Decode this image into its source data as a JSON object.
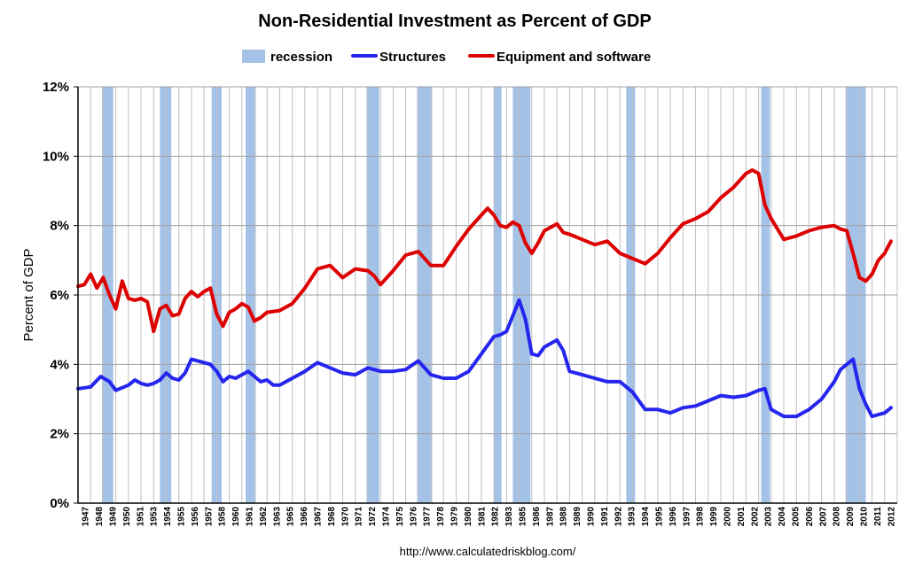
{
  "chart_data": {
    "type": "line",
    "title": "Non-Residential Investment as Percent of GDP",
    "xlabel": "",
    "ylabel": "Percent of GDP",
    "source": "http://www.calculatedriskblog.com/",
    "xlim": [
      1947,
      2012
    ],
    "ylim": [
      0,
      12
    ],
    "y_ticks": [
      0,
      2,
      4,
      6,
      8,
      10,
      12
    ],
    "y_tick_labels": [
      "0%",
      "2%",
      "4%",
      "6%",
      "8%",
      "10%",
      "12%"
    ],
    "x_tick_labels": [
      "1947",
      "1948",
      "1949",
      "1950",
      "1951",
      "1953",
      "1954",
      "1955",
      "1956",
      "1957",
      "1958",
      "1960",
      "1961",
      "1962",
      "1963",
      "1965",
      "1966",
      "1967",
      "1968",
      "1970",
      "1971",
      "1972",
      "1974",
      "1975",
      "1976",
      "1977",
      "1978",
      "1979",
      "1980",
      "1981",
      "1982",
      "1983",
      "1985",
      "1986",
      "1987",
      "1988",
      "1989",
      "1990",
      "1991",
      "1992",
      "1993",
      "1994",
      "1995",
      "1996",
      "1997",
      "1998",
      "1999",
      "2000",
      "2001",
      "2002",
      "2003",
      "2004",
      "2005",
      "2006",
      "2007",
      "2008",
      "2009",
      "2010",
      "2011",
      "2012"
    ],
    "grid": true,
    "legend_position": "top",
    "legend": [
      {
        "label": "recession",
        "color": "#a4c2e8",
        "kind": "bar"
      },
      {
        "label": "Structures",
        "color": "#2525ee",
        "kind": "line"
      },
      {
        "label": "Equipment and software",
        "color": "#dd0000",
        "kind": "line"
      }
    ],
    "recessions": [
      [
        1948.9,
        1949.8
      ],
      [
        1953.5,
        1954.4
      ],
      [
        1957.6,
        1958.4
      ],
      [
        1960.3,
        1961.1
      ],
      [
        1969.9,
        1970.9
      ],
      [
        1973.9,
        1975.1
      ],
      [
        1980.0,
        1980.6
      ],
      [
        1981.5,
        1982.9
      ],
      [
        1990.5,
        1991.2
      ],
      [
        2001.2,
        2001.9
      ],
      [
        2007.9,
        2009.5
      ]
    ],
    "series": [
      {
        "name": "Structures",
        "color": "#2525ee",
        "x": [
          1947,
          1948,
          1948.8,
          1949.5,
          1950,
          1951,
          1951.5,
          1952,
          1952.5,
          1953,
          1953.5,
          1954,
          1954.5,
          1955,
          1955.5,
          1956,
          1956.5,
          1957,
          1957.5,
          1958,
          1958.5,
          1959,
          1959.5,
          1960,
          1960.5,
          1961,
          1961.5,
          1962,
          1962.5,
          1963,
          1964,
          1965,
          1966,
          1967,
          1968,
          1969,
          1970,
          1971,
          1972,
          1973,
          1974,
          1975,
          1976,
          1977,
          1978,
          1979,
          1980,
          1980.5,
          1981,
          1981.5,
          1982,
          1982.5,
          1983,
          1983.5,
          1984,
          1985,
          1985.5,
          1986,
          1987,
          1988,
          1989,
          1990,
          1991,
          1992,
          1993,
          1994,
          1995,
          1996,
          1997,
          1998,
          1999,
          2000,
          2001,
          2001.5,
          2002,
          2003,
          2004,
          2005,
          2006,
          2007,
          2007.5,
          2008,
          2008.5,
          2009,
          2009.5,
          2010,
          2010.5,
          2011,
          2011.5
        ],
        "y": [
          3.3,
          3.35,
          3.65,
          3.5,
          3.25,
          3.4,
          3.55,
          3.45,
          3.4,
          3.45,
          3.55,
          3.75,
          3.6,
          3.55,
          3.75,
          4.15,
          4.1,
          4.05,
          4.0,
          3.8,
          3.5,
          3.65,
          3.6,
          3.7,
          3.8,
          3.65,
          3.5,
          3.55,
          3.4,
          3.4,
          3.6,
          3.8,
          4.05,
          3.9,
          3.75,
          3.7,
          3.9,
          3.8,
          3.8,
          3.85,
          4.1,
          3.7,
          3.6,
          3.6,
          3.8,
          4.3,
          4.8,
          4.85,
          4.95,
          5.4,
          5.85,
          5.3,
          4.3,
          4.25,
          4.5,
          4.7,
          4.4,
          3.8,
          3.7,
          3.6,
          3.5,
          3.5,
          3.2,
          2.7,
          2.7,
          2.6,
          2.75,
          2.8,
          2.95,
          3.1,
          3.05,
          3.1,
          3.25,
          3.3,
          2.7,
          2.5,
          2.5,
          2.7,
          3.0,
          3.5,
          3.85,
          4.0,
          4.15,
          3.3,
          2.85,
          2.5,
          2.55,
          2.6,
          2.75
        ]
      },
      {
        "name": "Equipment and software",
        "color": "#dd0000",
        "x": [
          1947,
          1947.5,
          1948,
          1948.5,
          1949,
          1949.5,
          1950,
          1950.5,
          1951,
          1951.5,
          1952,
          1952.5,
          1953,
          1953.5,
          1954,
          1954.5,
          1955,
          1955.5,
          1956,
          1956.5,
          1957,
          1957.5,
          1958,
          1958.5,
          1959,
          1959.5,
          1960,
          1960.5,
          1961,
          1961.5,
          1962,
          1963,
          1964,
          1965,
          1966,
          1967,
          1968,
          1969,
          1970,
          1970.5,
          1971,
          1972,
          1973,
          1974,
          1975,
          1976,
          1977,
          1978,
          1979,
          1979.5,
          1980,
          1980.5,
          1981,
          1981.5,
          1982,
          1982.5,
          1983,
          1983.5,
          1984,
          1985,
          1985.5,
          1986,
          1987,
          1988,
          1989,
          1990,
          1991,
          1992,
          1993,
          1994,
          1995,
          1996,
          1997,
          1998,
          1999,
          2000,
          2000.5,
          2001,
          2001.5,
          2002,
          2003,
          2004,
          2005,
          2006,
          2007,
          2007.5,
          2008,
          2008.5,
          2009,
          2009.5,
          2010,
          2010.5,
          2011,
          2011.5
        ],
        "y": [
          6.25,
          6.3,
          6.6,
          6.2,
          6.5,
          6.0,
          5.6,
          6.4,
          5.9,
          5.85,
          5.9,
          5.8,
          4.95,
          5.6,
          5.7,
          5.4,
          5.45,
          5.9,
          6.1,
          5.95,
          6.1,
          6.2,
          5.45,
          5.1,
          5.5,
          5.6,
          5.75,
          5.65,
          5.25,
          5.35,
          5.5,
          5.55,
          5.75,
          6.2,
          6.75,
          6.85,
          6.5,
          6.75,
          6.7,
          6.55,
          6.3,
          6.7,
          7.15,
          7.25,
          6.85,
          6.85,
          7.4,
          7.9,
          8.3,
          8.5,
          8.3,
          8.0,
          7.95,
          8.1,
          8.0,
          7.5,
          7.2,
          7.5,
          7.85,
          8.05,
          7.8,
          7.75,
          7.6,
          7.45,
          7.55,
          7.2,
          7.05,
          6.9,
          7.2,
          7.65,
          8.05,
          8.2,
          8.4,
          8.8,
          9.1,
          9.5,
          9.6,
          9.5,
          8.6,
          8.2,
          7.6,
          7.7,
          7.85,
          7.95,
          8.0,
          7.9,
          7.85,
          7.2,
          6.5,
          6.4,
          6.6,
          7.0,
          7.2,
          7.55
        ]
      }
    ]
  }
}
